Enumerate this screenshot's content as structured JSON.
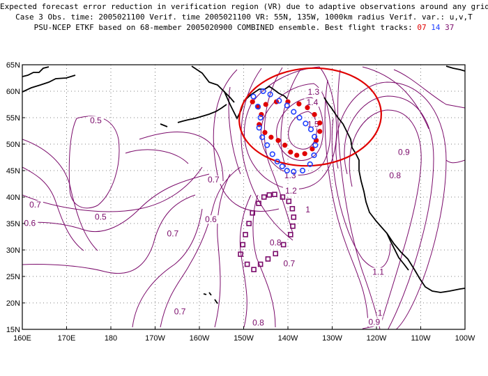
{
  "title": {
    "line1": "Expected forecast error reduction in verification region (VR) due to adaptive observations around any grid point.",
    "line2": "Case 3  Obs. time: 2005021100  Verif. time 2005021100  VR: 55N, 135W, 1000km radius  Verif. var.: u,v,T",
    "line3_prefix": "PSU-NCEP ETKF based on 68-member 2005020900 COMBINED ensemble.  Best flight tracks:",
    "track1": "07",
    "track2": "14",
    "track3": "37"
  },
  "map": {
    "lon_min": 160,
    "lon_max": 260,
    "lat_min": 15,
    "lat_max": 65,
    "lon_labels": [
      "160E",
      "170E",
      "180",
      "170W",
      "160W",
      "150W",
      "140W",
      "130W",
      "120W",
      "110W",
      "100W"
    ],
    "lat_labels": [
      "15N",
      "20N",
      "25N",
      "30N",
      "35N",
      "40N",
      "45N",
      "50N",
      "55N",
      "60N",
      "65N"
    ],
    "grid": "dotted",
    "coastline_color": "#000000",
    "contour_color": "#7a0a6a",
    "contour_labels": [
      {
        "text": "1.3",
        "lon": 225.8,
        "lat": 59.6
      },
      {
        "text": "1.4",
        "lon": 225.5,
        "lat": 57.6
      },
      {
        "text": "1.5",
        "lon": 225.7,
        "lat": 53.5
      },
      {
        "text": "1.3",
        "lon": 220.5,
        "lat": 43.8
      },
      {
        "text": "1.2",
        "lon": 220.7,
        "lat": 40.9
      },
      {
        "text": "1",
        "lon": 224.5,
        "lat": 37.4
      },
      {
        "text": "0.9",
        "lon": 246.2,
        "lat": 48.2
      },
      {
        "text": "0.8",
        "lon": 244.2,
        "lat": 43.8
      },
      {
        "text": "1.1",
        "lon": 240.4,
        "lat": 25.6
      },
      {
        "text": "1",
        "lon": 240.8,
        "lat": 17.8
      },
      {
        "text": "0.9",
        "lon": 239.5,
        "lat": 16.1
      },
      {
        "text": "0.8",
        "lon": 217.2,
        "lat": 31.1
      },
      {
        "text": "0.7",
        "lon": 220.3,
        "lat": 27.2
      },
      {
        "text": "0.8",
        "lon": 213.3,
        "lat": 16.0
      },
      {
        "text": "0.7",
        "lon": 195.6,
        "lat": 18.1
      },
      {
        "text": "0.7",
        "lon": 194.0,
        "lat": 32.8
      },
      {
        "text": "0.6",
        "lon": 202.6,
        "lat": 35.5
      },
      {
        "text": "0.5",
        "lon": 177.7,
        "lat": 36.0
      },
      {
        "text": "0.5",
        "lon": 176.6,
        "lat": 54.2
      },
      {
        "text": "0.7",
        "lon": 203.2,
        "lat": 43.0
      },
      {
        "text": "0.7",
        "lon": 162.9,
        "lat": 38.3
      },
      {
        "text": "0.6",
        "lon": 161.7,
        "lat": 34.8
      }
    ],
    "verification_region": {
      "center_lon": 225,
      "center_lat": 55,
      "radius_km": 1000,
      "color": "#e00000"
    },
    "flight_tracks": [
      {
        "id": "07",
        "color": "#e00000",
        "marker": "filled-circle",
        "points": [
          [
            212.0,
            58.0
          ],
          [
            213.3,
            57.0
          ],
          [
            214.0,
            55.6
          ],
          [
            213.5,
            53.7
          ],
          [
            214.8,
            52.2
          ],
          [
            216.2,
            51.3
          ],
          [
            217.8,
            50.7
          ],
          [
            219.3,
            49.8
          ],
          [
            220.6,
            48.5
          ],
          [
            222.0,
            47.9
          ],
          [
            223.8,
            48.2
          ],
          [
            225.5,
            49.1
          ],
          [
            226.4,
            50.7
          ],
          [
            227.2,
            52.4
          ],
          [
            227.2,
            54.0
          ],
          [
            226.0,
            55.6
          ],
          [
            224.4,
            56.9
          ],
          [
            222.5,
            57.6
          ],
          [
            220.0,
            58.0
          ],
          [
            217.4,
            58.0
          ],
          [
            215.0,
            57.5
          ]
        ]
      },
      {
        "id": "14",
        "color": "#2040ff",
        "marker": "open-circle",
        "points": [
          [
            212.2,
            59.0
          ],
          [
            213.2,
            57.1
          ],
          [
            213.8,
            55.0
          ],
          [
            213.5,
            53.1
          ],
          [
            214.2,
            51.3
          ],
          [
            215.3,
            49.8
          ],
          [
            216.5,
            48.1
          ],
          [
            217.6,
            46.7
          ],
          [
            218.7,
            45.8
          ],
          [
            219.8,
            45.0
          ],
          [
            221.3,
            44.8
          ],
          [
            223.3,
            45.0
          ],
          [
            225.0,
            46.2
          ],
          [
            225.9,
            47.9
          ],
          [
            226.2,
            49.8
          ],
          [
            226.0,
            51.4
          ],
          [
            225.2,
            52.8
          ],
          [
            224.0,
            53.9
          ],
          [
            222.6,
            55.0
          ],
          [
            221.3,
            56.1
          ],
          [
            219.8,
            57.3
          ],
          [
            218.0,
            58.2
          ],
          [
            216.0,
            59.4
          ],
          [
            214.4,
            60.0
          ]
        ]
      },
      {
        "id": "37",
        "color": "#7a0a6a",
        "marker": "open-square",
        "points": [
          [
            214.6,
            40.0
          ],
          [
            213.4,
            38.8
          ],
          [
            212.0,
            37.0
          ],
          [
            211.2,
            35.0
          ],
          [
            210.4,
            32.9
          ],
          [
            209.8,
            31.0
          ],
          [
            209.3,
            29.2
          ],
          [
            210.8,
            27.3
          ],
          [
            212.3,
            26.3
          ],
          [
            213.8,
            27.3
          ],
          [
            215.5,
            28.3
          ],
          [
            217.2,
            29.3
          ],
          [
            219.0,
            31.0
          ],
          [
            220.6,
            32.9
          ],
          [
            221.1,
            34.5
          ],
          [
            221.3,
            36.2
          ],
          [
            221.0,
            37.8
          ],
          [
            220.2,
            39.2
          ],
          [
            218.8,
            40.0
          ],
          [
            217.0,
            40.5
          ],
          [
            215.8,
            40.4
          ]
        ]
      }
    ]
  }
}
